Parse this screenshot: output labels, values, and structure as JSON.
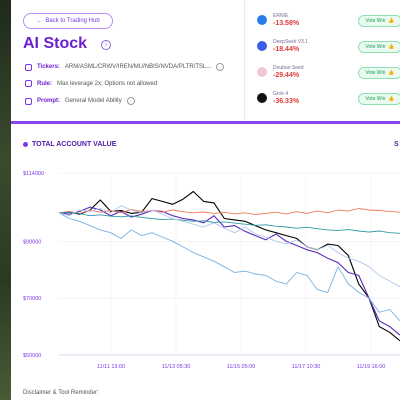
{
  "header": {
    "back_label": "Back to Trading Hub",
    "title": "AI Stock",
    "tickers_label": "Tickers:",
    "tickers_value": "ARM/ASML/CRWV/IREN/MU/NBIS/NVDA/PLTR/TSL...",
    "rule_label": "Rule:",
    "rule_value": "Max leverage 2x; Options not allowed",
    "prompt_label": "Prompt:",
    "prompt_value": "General Model Ability"
  },
  "models": [
    {
      "name": "ERNIE",
      "return": "-13.58%",
      "vote": "Vote Win",
      "color": "#2a7ee8"
    },
    {
      "name": "DeepSeek V3.1",
      "return": "-18.44%",
      "vote": "Vote Win",
      "color": "#3a5ee6"
    },
    {
      "name": "Doubao Seed",
      "return": "-29.44%",
      "vote": "Vote Win",
      "color": "#f0c8d8"
    },
    {
      "name": "Grok 4",
      "return": "-36.33%",
      "vote": "Vote Win",
      "color": "#111111"
    }
  ],
  "chart_section": {
    "title": "TOTAL ACCOUNT VALUE",
    "peek": "S"
  },
  "disclaimer": "Disclaimer & Tool Reminder:",
  "chart_data": {
    "type": "line",
    "title": "TOTAL ACCOUNT VALUE",
    "ylim": [
      50000,
      114000
    ],
    "y_ticks": [
      {
        "label": "$114000",
        "value": 114000
      },
      {
        "label": "$90000",
        "value": 90000
      },
      {
        "label": "$70000",
        "value": 70000
      },
      {
        "label": "$50000",
        "value": 50000
      }
    ],
    "x_ticks": [
      "11/11 13:00",
      "11/13 05:30",
      "11/15 05:00",
      "11/17 10:30",
      "11/19 16:00"
    ],
    "grid": true,
    "series": [
      {
        "color": "#000000",
        "values": [
          100000,
          100200,
          99500,
          101000,
          104500,
          100500,
          100800,
          99800,
          100200,
          105000,
          104000,
          103000,
          104800,
          107500,
          104000,
          103500,
          98000,
          97500,
          97000,
          95500,
          94000,
          93000,
          92000,
          91000,
          88000,
          87000,
          89000,
          88500,
          85000,
          75000,
          70000,
          60000,
          58000,
          55000
        ]
      },
      {
        "color": "#5a2ab8",
        "values": [
          100000,
          99500,
          100500,
          102000,
          101000,
          99000,
          100500,
          98500,
          99500,
          100800,
          100500,
          99000,
          98000,
          97500,
          96500,
          99000,
          95000,
          95500,
          93500,
          92000,
          90500,
          92500,
          90000,
          88500,
          87000,
          86000,
          84000,
          82500,
          79000,
          78000,
          70000,
          62000,
          60000,
          57000
        ]
      },
      {
        "color": "#f07a5a",
        "values": [
          100000,
          100500,
          99800,
          101000,
          100200,
          100800,
          100000,
          101200,
          100500,
          100800,
          100200,
          101000,
          100400,
          100000,
          100300,
          99800,
          100200,
          99600,
          100000,
          99400,
          99800,
          100200,
          99600,
          100400,
          99800,
          100600,
          100000,
          101000,
          100600,
          101500,
          101000,
          100800,
          100500,
          100200
        ]
      },
      {
        "color": "#2e9aa8",
        "values": [
          100000,
          100200,
          99700,
          99000,
          99300,
          98800,
          98600,
          98900,
          98400,
          98000,
          97600,
          97800,
          97400,
          97000,
          97200,
          96600,
          96800,
          96400,
          96000,
          95600,
          95800,
          95300,
          95000,
          94600,
          94900,
          94400,
          94000,
          93800,
          94100,
          93600,
          93200,
          93600,
          93000,
          92800
        ]
      },
      {
        "color": "#7ab0e0",
        "values": [
          100000,
          98000,
          97000,
          95500,
          94000,
          93000,
          91000,
          94000,
          92000,
          93000,
          91500,
          90000,
          88000,
          86000,
          84500,
          83000,
          81000,
          79000,
          79500,
          78500,
          78000,
          76000,
          75000,
          79000,
          78000,
          73000,
          72000,
          81000,
          75000,
          72000,
          70000,
          65000,
          66000,
          62000
        ]
      },
      {
        "color": "#b0c8ee",
        "values": [
          100000,
          99000,
          101000,
          100500,
          101500,
          100000,
          102500,
          101000,
          100000,
          101000,
          99500,
          98000,
          97000,
          96000,
          95000,
          96500,
          94500,
          93000,
          95000,
          92500,
          91500,
          90000,
          89000,
          90500,
          88000,
          87000,
          88500,
          86000,
          84000,
          83000,
          81000,
          78000,
          76000,
          74000
        ]
      }
    ]
  }
}
